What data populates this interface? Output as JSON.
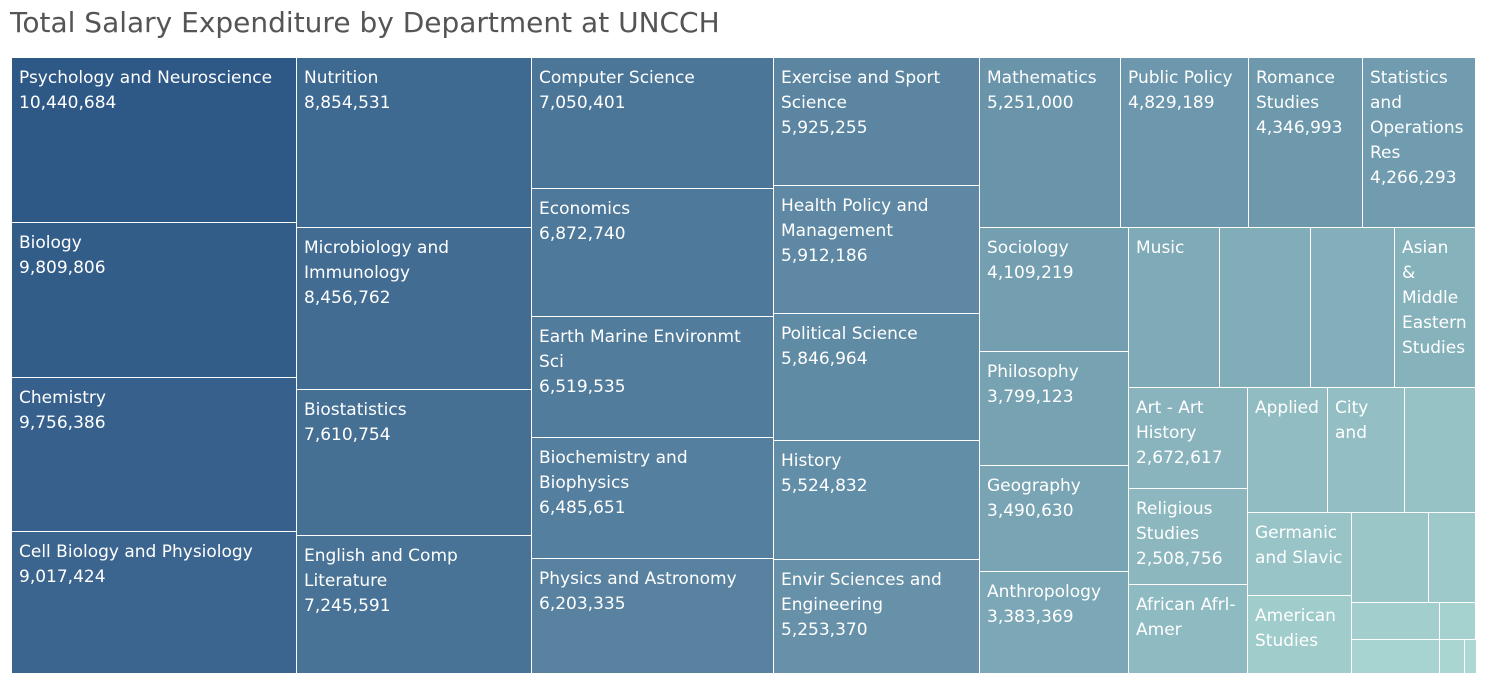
{
  "title": "Total Salary Expenditure by Department at UNCCH",
  "chart_data": {
    "type": "treemap",
    "title": "Total Salary Expenditure by Department at UNCCH",
    "color_scale": [
      "#2e5886",
      "#acd8d3"
    ],
    "items": [
      {
        "name": "Psychology and Neuroscience",
        "value": 10440684,
        "value_text": "10,440,684"
      },
      {
        "name": "Biology",
        "value": 9809806,
        "value_text": "9,809,806"
      },
      {
        "name": "Chemistry",
        "value": 9756386,
        "value_text": "9,756,386"
      },
      {
        "name": "Cell Biology and Physiology",
        "value": 9017424,
        "value_text": "9,017,424"
      },
      {
        "name": "Nutrition",
        "value": 8854531,
        "value_text": "8,854,531"
      },
      {
        "name": "Microbiology and Immunology",
        "value": 8456762,
        "value_text": "8,456,762"
      },
      {
        "name": "Biostatistics",
        "value": 7610754,
        "value_text": "7,610,754"
      },
      {
        "name": "English and Comp Literature",
        "value": 7245591,
        "value_text": "7,245,591"
      },
      {
        "name": "Computer Science",
        "value": 7050401,
        "value_text": "7,050,401"
      },
      {
        "name": "Economics",
        "value": 6872740,
        "value_text": "6,872,740"
      },
      {
        "name": "Earth Marine Environmt Sci",
        "value": 6519535,
        "value_text": "6,519,535"
      },
      {
        "name": "Biochemistry and Biophysics",
        "value": 6485651,
        "value_text": "6,485,651"
      },
      {
        "name": "Physics and Astronomy",
        "value": 6203335,
        "value_text": "6,203,335"
      },
      {
        "name": "Exercise and Sport Science",
        "value": 5925255,
        "value_text": "5,925,255"
      },
      {
        "name": "Health Policy and Management",
        "value": 5912186,
        "value_text": "5,912,186"
      },
      {
        "name": "Political Science",
        "value": 5846964,
        "value_text": "5,846,964"
      },
      {
        "name": "History",
        "value": 5524832,
        "value_text": "5,524,832"
      },
      {
        "name": "Envir Sciences and Engineering",
        "value": 5253370,
        "value_text": "5,253,370"
      },
      {
        "name": "Mathematics",
        "value": 5251000,
        "value_text": "5,251,000"
      },
      {
        "name": "Public Policy",
        "value": 4829189,
        "value_text": "4,829,189"
      },
      {
        "name": "Romance Studies",
        "value": 4346993,
        "value_text": "4,346,993"
      },
      {
        "name": "Statistics and Operations Res",
        "value": 4266293,
        "value_text": "4,266,293"
      },
      {
        "name": "Sociology",
        "value": 4109219,
        "value_text": "4,109,219"
      },
      {
        "name": "Philosophy",
        "value": 3799123,
        "value_text": "3,799,123"
      },
      {
        "name": "Geography",
        "value": 3490630,
        "value_text": "3,490,630"
      },
      {
        "name": "Anthropology",
        "value": 3383369,
        "value_text": "3,383,369"
      },
      {
        "name": "Music",
        "value": null,
        "value_text": ""
      },
      {
        "name": "",
        "value": null,
        "value_text": ""
      },
      {
        "name": "",
        "value": null,
        "value_text": ""
      },
      {
        "name": "Asian & Middle Eastern Studies",
        "value": null,
        "value_text": ""
      },
      {
        "name": "Art - Art History",
        "value": 2672617,
        "value_text": "2,672,617"
      },
      {
        "name": "Religious Studies",
        "value": 2508756,
        "value_text": "2,508,756"
      },
      {
        "name": "African Afrl-Amer",
        "value": null,
        "value_text": ""
      },
      {
        "name": "Applied",
        "value": null,
        "value_text": ""
      },
      {
        "name": "City and",
        "value": null,
        "value_text": ""
      },
      {
        "name": "",
        "value": null,
        "value_text": ""
      },
      {
        "name": "Germanic and Slavic",
        "value": null,
        "value_text": ""
      },
      {
        "name": "",
        "value": null,
        "value_text": ""
      },
      {
        "name": "",
        "value": null,
        "value_text": ""
      },
      {
        "name": "American Studies",
        "value": null,
        "value_text": ""
      },
      {
        "name": "",
        "value": null,
        "value_text": ""
      },
      {
        "name": "",
        "value": null,
        "value_text": ""
      },
      {
        "name": "",
        "value": null,
        "value_text": ""
      },
      {
        "name": "",
        "value": null,
        "value_text": ""
      },
      {
        "name": "",
        "value": null,
        "value_text": ""
      }
    ]
  }
}
